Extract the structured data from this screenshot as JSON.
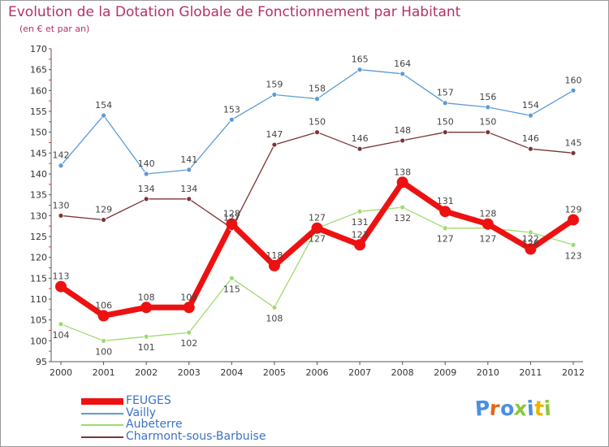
{
  "header": {
    "title": "Evolution de la Dotation Globale de Fonctionnement par Habitant",
    "subtitle": "(en € et par an)"
  },
  "brand": {
    "letters": [
      {
        "char": "P",
        "color": "#4a8fe0"
      },
      {
        "char": "r",
        "color": "#e8641a"
      },
      {
        "char": "o",
        "color": "#4a8fe0"
      },
      {
        "char": "x",
        "color": "#8cc63f"
      },
      {
        "char": "i",
        "color": "#4a8fe0"
      },
      {
        "char": "t",
        "color": "#f0b400"
      },
      {
        "char": "i",
        "color": "#8cc63f"
      }
    ]
  },
  "chart_data": {
    "type": "line",
    "title": "Evolution de la Dotation Globale de Fonctionnement par Habitant",
    "ylabel": "(en € et par an)",
    "x": [
      "2000",
      "2001",
      "2002",
      "2003",
      "2004",
      "2005",
      "2006",
      "2007",
      "2008",
      "2009",
      "2010",
      "2011",
      "2012"
    ],
    "ylim": [
      95,
      170
    ],
    "ystep": 5,
    "grid": false,
    "series": [
      {
        "name": "FEUGES",
        "color": "#ee1111",
        "values": [
          113,
          106,
          108,
          108,
          128,
          118,
          127,
          123,
          138,
          131,
          128,
          122,
          129
        ]
      },
      {
        "name": "Vailly",
        "color": "#5b9bd5",
        "values": [
          142,
          154,
          140,
          141,
          153,
          159,
          158,
          165,
          164,
          157,
          156,
          154,
          160
        ]
      },
      {
        "name": "Aubeterre",
        "color": "#9fdb6e",
        "values": [
          104,
          100,
          101,
          102,
          115,
          108,
          127,
          131,
          132,
          127,
          127,
          126,
          123
        ]
      },
      {
        "name": "Charmont-sous-Barbuise",
        "color": "#7a3535",
        "values": [
          130,
          129,
          134,
          134,
          127,
          147,
          150,
          146,
          148,
          150,
          150,
          146,
          145
        ]
      }
    ]
  }
}
